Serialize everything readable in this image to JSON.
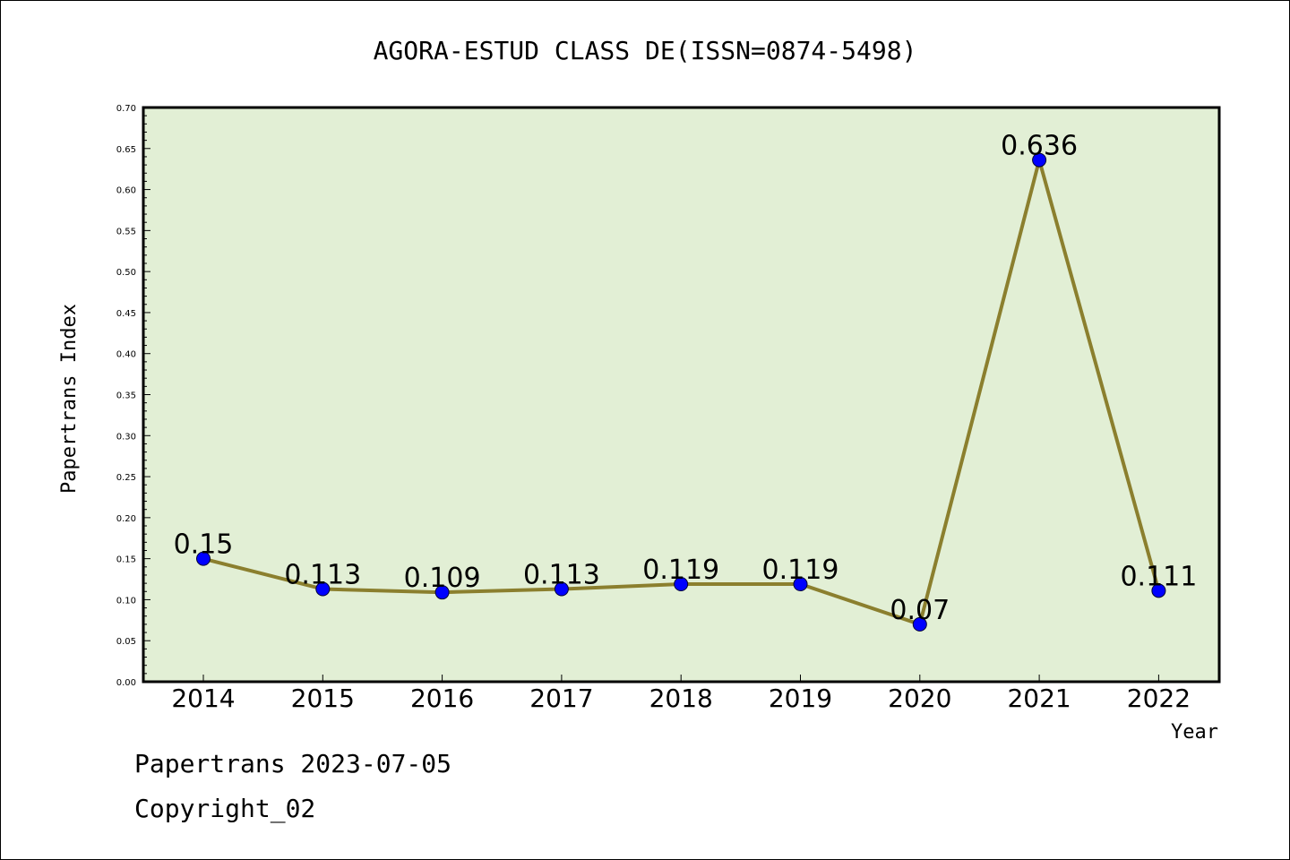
{
  "chart_data": {
    "type": "line",
    "title": "AGORA-ESTUD CLASS DE(ISSN=0874-5498)",
    "xlabel": "Year",
    "ylabel": "Papertrans Index",
    "categories": [
      "2014",
      "2015",
      "2016",
      "2017",
      "2018",
      "2019",
      "2020",
      "2021",
      "2022"
    ],
    "values": [
      0.15,
      0.113,
      0.109,
      0.113,
      0.119,
      0.119,
      0.07,
      0.636,
      0.111
    ],
    "data_labels": [
      "0.15",
      "0.113",
      "0.109",
      "0.113",
      "0.119",
      "0.119",
      "0.07",
      "0.636",
      "0.111"
    ],
    "ylim": [
      0,
      0.7
    ],
    "yticks": [
      "0.00",
      "0.05",
      "0.10",
      "0.15",
      "0.20",
      "0.25",
      "0.30",
      "0.35",
      "0.40",
      "0.45",
      "0.50",
      "0.55",
      "0.60",
      "0.65",
      "0.70"
    ],
    "grid": false,
    "colors": {
      "plot_background": "#e2efd5",
      "line": "#8b7f2e",
      "marker": "#0000ff"
    }
  },
  "footer": {
    "date_line": "Papertrans 2023-07-05",
    "copyright": "Copyright_02"
  }
}
